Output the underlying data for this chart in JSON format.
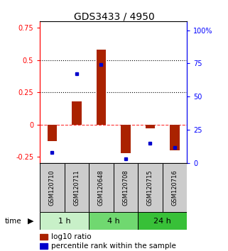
{
  "title": "GDS3433 / 4950",
  "samples": [
    "GSM120710",
    "GSM120711",
    "GSM120648",
    "GSM120708",
    "GSM120715",
    "GSM120716"
  ],
  "log10_ratio": [
    -0.13,
    0.18,
    0.58,
    -0.22,
    -0.03,
    -0.2
  ],
  "percentile_rank": [
    0.08,
    0.67,
    0.74,
    0.03,
    0.15,
    0.12
  ],
  "groups": [
    {
      "label": "1 h",
      "indices": [
        0,
        1
      ],
      "color": "#c8f0c8"
    },
    {
      "label": "4 h",
      "indices": [
        2,
        3
      ],
      "color": "#70d870"
    },
    {
      "label": "24 h",
      "indices": [
        4,
        5
      ],
      "color": "#38c038"
    }
  ],
  "ylim_left": [
    -0.3,
    0.8
  ],
  "ylim_right": [
    0.0,
    1.0667
  ],
  "yticks_left": [
    -0.25,
    0.0,
    0.25,
    0.5,
    0.75
  ],
  "ytick_labels_left": [
    "-0.25",
    "0",
    "0.25",
    "0.5",
    "0.75"
  ],
  "yticks_right": [
    0.0,
    0.25,
    0.5,
    0.75,
    1.0
  ],
  "ytick_labels_right": [
    "0",
    "25",
    "50",
    "75",
    "100%"
  ],
  "bar_color": "#aa2200",
  "dot_color": "#0000cc",
  "dotted_lines": [
    0.25,
    0.5
  ],
  "bar_width": 0.4,
  "time_label": "time",
  "legend_bar_label": "log10 ratio",
  "legend_dot_label": "percentile rank within the sample"
}
